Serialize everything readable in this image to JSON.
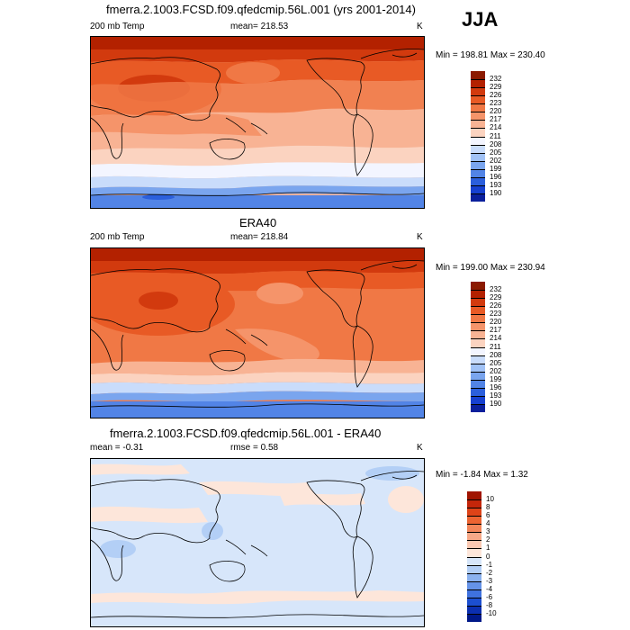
{
  "season": "JJA",
  "panels": [
    {
      "title": "fmerra.2.1003.FCSD.f09.qfedcmip.56L.001 (yrs 2001-2014)",
      "left_label": "200 mb Temp",
      "center_label": "mean= 218.53",
      "right_label": "K",
      "minmax": "Min = 198.81 Max = 230.40",
      "colorbar": {
        "levels": [
          "232",
          "229",
          "226",
          "223",
          "220",
          "217",
          "214",
          "211",
          "208",
          "205",
          "202",
          "199",
          "196",
          "193",
          "190"
        ],
        "colors": [
          "#8b1a00",
          "#b32100",
          "#d23a0e",
          "#e85a25",
          "#f07845",
          "#f5946a",
          "#f8b394",
          "#fbd3c0",
          "#f3f5ff",
          "#c9dcfb",
          "#a1c2f6",
          "#7aa5ee",
          "#5284e6",
          "#2b5fdc",
          "#1640d0",
          "#0a1f9c"
        ]
      }
    },
    {
      "title": "ERA40",
      "left_label": "200 mb Temp",
      "center_label": "mean= 218.84",
      "right_label": "K",
      "minmax": "Min = 199.00 Max = 230.94",
      "colorbar": {
        "levels": [
          "232",
          "229",
          "226",
          "223",
          "220",
          "217",
          "214",
          "211",
          "208",
          "205",
          "202",
          "199",
          "196",
          "193",
          "190"
        ],
        "colors": [
          "#8b1a00",
          "#b32100",
          "#d23a0e",
          "#e85a25",
          "#f07845",
          "#f5946a",
          "#f8b394",
          "#fbd3c0",
          "#f3f5ff",
          "#c9dcfb",
          "#a1c2f6",
          "#7aa5ee",
          "#5284e6",
          "#2b5fdc",
          "#1640d0",
          "#0a1f9c"
        ]
      }
    },
    {
      "title": "fmerra.2.1003.FCSD.f09.qfedcmip.56L.001 - ERA40",
      "left_label": "mean =  -0.31",
      "center_label": "rmse =   0.58",
      "right_label": "K",
      "minmax": "Min =  -1.84 Max =   1.32",
      "colorbar": {
        "levels": [
          "10",
          "8",
          "6",
          "4",
          "3",
          "2",
          "1",
          "0",
          "-1",
          "-2",
          "-3",
          "-4",
          "-6",
          "-8",
          "-10"
        ],
        "colors": [
          "#a01400",
          "#c4260a",
          "#de4318",
          "#ec6432",
          "#f3865a",
          "#f7a988",
          "#fbc9b3",
          "#fde6da",
          "#d7e6fa",
          "#b3cff6",
          "#8bb2ef",
          "#6593e8",
          "#3f72df",
          "#1c4fd1",
          "#0b2fb0",
          "#001888"
        ]
      }
    }
  ]
}
